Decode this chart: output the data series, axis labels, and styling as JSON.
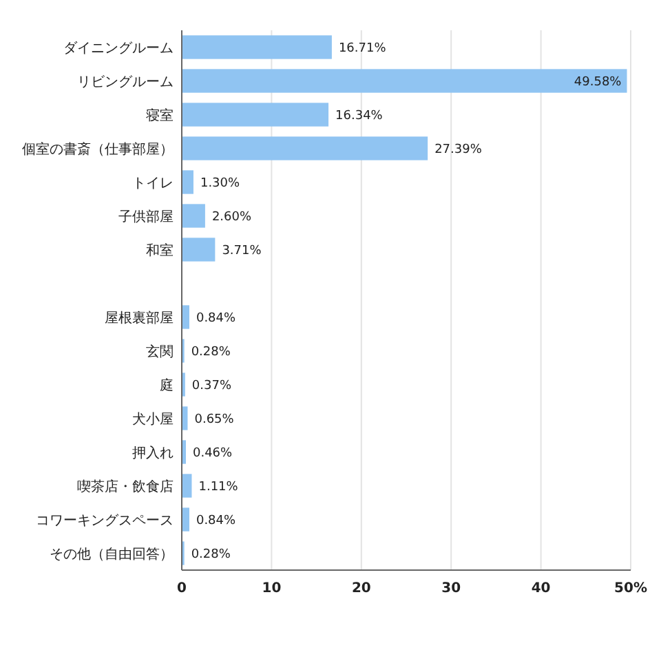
{
  "chart_data": {
    "type": "bar",
    "orientation": "horizontal",
    "categories": [
      "ダイニングルーム",
      "リビングルーム",
      "寝室",
      "個室の書斎（仕事部屋）",
      "トイレ",
      "子供部屋",
      "和室",
      null,
      "屋根裏部屋",
      "玄関",
      "庭",
      "犬小屋",
      "押入れ",
      "喫茶店・飲食店",
      "コワーキングスペース",
      "その他（自由回答）"
    ],
    "values": [
      16.71,
      49.58,
      16.34,
      27.39,
      1.3,
      2.6,
      3.71,
      null,
      0.84,
      0.28,
      0.37,
      0.65,
      0.46,
      1.11,
      0.84,
      0.28
    ],
    "value_labels": [
      "16.71%",
      "49.58%",
      "16.34%",
      "27.39%",
      "1.30%",
      "2.60%",
      "3.71%",
      null,
      "0.84%",
      "0.28%",
      "0.37%",
      "0.65%",
      "0.46%",
      "1.11%",
      "0.84%",
      "0.28%"
    ],
    "color": "#90c4f2",
    "xlim": [
      0,
      50
    ],
    "xticks": [
      0,
      10,
      20,
      30,
      40,
      {
        "value": 50,
        "label": "50%"
      }
    ],
    "grid": "x"
  }
}
